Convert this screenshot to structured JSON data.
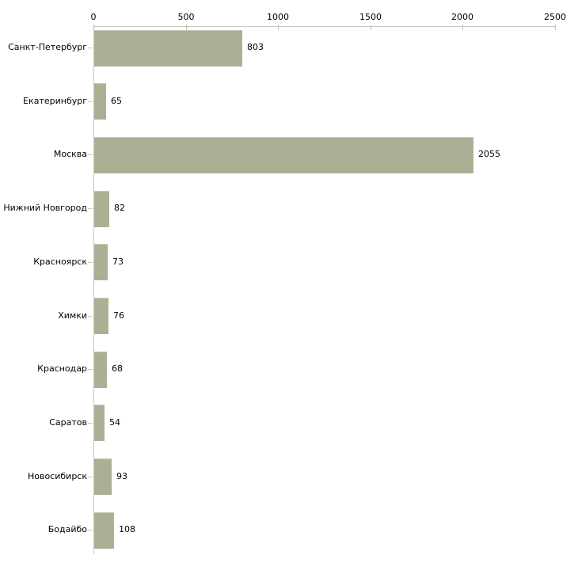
{
  "chart_data": {
    "type": "bar",
    "orientation": "horizontal",
    "title": "",
    "xlabel": "",
    "ylabel": "",
    "categories": [
      "Санкт-Петербург",
      "Екатеринбург",
      "Москва",
      "Нижний Новгород",
      "Красноярск",
      "Химки",
      "Краснодар",
      "Саратов",
      "Новосибирск",
      "Бодайбо"
    ],
    "values": [
      803,
      65,
      2055,
      82,
      73,
      76,
      68,
      54,
      93,
      108
    ],
    "value_labels": [
      "803",
      "65",
      "2055",
      "82",
      "73",
      "76",
      "68",
      "54",
      "93",
      "108"
    ],
    "xlim": [
      0,
      2500
    ],
    "x_ticks": [
      "0",
      "500",
      "1000",
      "1500",
      "2000",
      "2500"
    ],
    "x_tick_values": [
      0,
      500,
      1000,
      1500,
      2000,
      2500
    ],
    "axis_position": "top",
    "grid": false,
    "legend": false,
    "colors": {
      "bar_fill": "#abb094",
      "axis_line": "#c6c6c6",
      "tick_mark": "#c6c39a",
      "category_tick_mark": "#cfc8b0",
      "text": "#000000",
      "background": "#ffffff"
    }
  }
}
